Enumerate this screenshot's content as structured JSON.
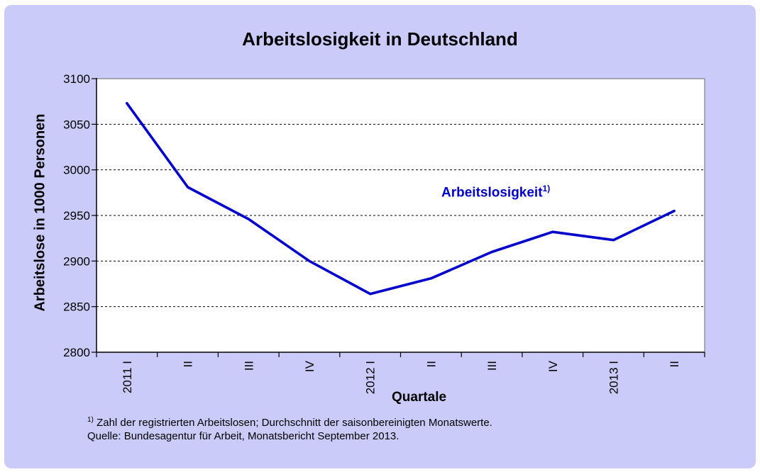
{
  "chart_data": {
    "type": "line",
    "title": "Arbeitslosigkeit in Deutschland",
    "categories": [
      "2011 I",
      "II",
      "III",
      "IV",
      "2012 I",
      "II",
      "III",
      "IV",
      "2013 I",
      "II"
    ],
    "series": [
      {
        "name": "Arbeitslosigkeit",
        "values": [
          3073,
          2981,
          2946,
          2900,
          2864,
          2881,
          2910,
          2932,
          2923,
          2955
        ]
      }
    ],
    "series_label_sup": "1)",
    "xlabel": "Quartale",
    "ylabel": "Arbeitslose in 1000 Personen",
    "ylim": [
      2800,
      3100
    ],
    "yticks": [
      2800,
      2850,
      2900,
      2950,
      3000,
      3050,
      3100
    ],
    "grid": "horizontal-dashed",
    "legend_position": "inside-plot-annotation",
    "line_color": "#0000CC",
    "panel_color": "#CBCBFA",
    "plot_background": "#FFFFFF",
    "plot_border_color": "#808080",
    "axis_color": "#000000"
  },
  "footnote": {
    "marker": "1)",
    "line1": " Zahl der registrierten Arbeitslosen; Durchschnitt der saisonbereinigten Monatswerte.",
    "line2": "Quelle: Bundesagentur für Arbeit, Monatsbericht September 2013."
  }
}
